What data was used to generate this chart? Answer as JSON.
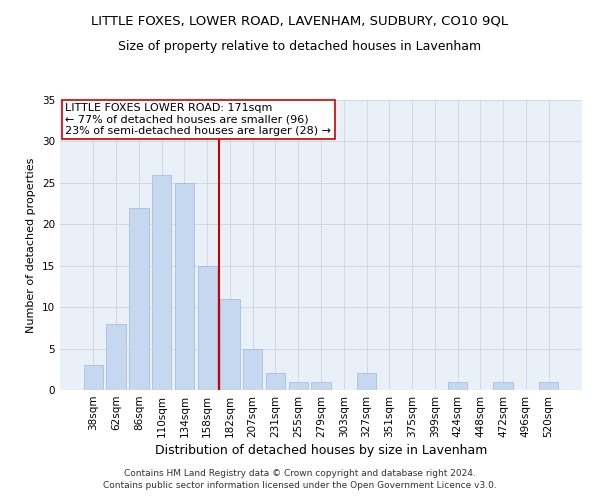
{
  "title": "LITTLE FOXES, LOWER ROAD, LAVENHAM, SUDBURY, CO10 9QL",
  "subtitle": "Size of property relative to detached houses in Lavenham",
  "xlabel": "Distribution of detached houses by size in Lavenham",
  "ylabel": "Number of detached properties",
  "categories": [
    "38sqm",
    "62sqm",
    "86sqm",
    "110sqm",
    "134sqm",
    "158sqm",
    "182sqm",
    "207sqm",
    "231sqm",
    "255sqm",
    "279sqm",
    "303sqm",
    "327sqm",
    "351sqm",
    "375sqm",
    "399sqm",
    "424sqm",
    "448sqm",
    "472sqm",
    "496sqm",
    "520sqm"
  ],
  "values": [
    3,
    8,
    22,
    26,
    25,
    15,
    11,
    5,
    2,
    1,
    1,
    0,
    2,
    0,
    0,
    0,
    1,
    0,
    1,
    0,
    1
  ],
  "bar_color": "#c5d8f0",
  "bar_edge_color": "#a0b8d8",
  "vline_x": 5.5,
  "vline_color": "#cc0000",
  "annotation_line1": "LITTLE FOXES LOWER ROAD: 171sqm",
  "annotation_line2": "← 77% of detached houses are smaller (96)",
  "annotation_line3": "23% of semi-detached houses are larger (28) →",
  "annotation_box_color": "#ffffff",
  "annotation_box_edge": "#cc0000",
  "ylim": [
    0,
    35
  ],
  "yticks": [
    0,
    5,
    10,
    15,
    20,
    25,
    30,
    35
  ],
  "grid_color": "#d0d8e8",
  "background_color": "#eaf0f8",
  "footer": "Contains HM Land Registry data © Crown copyright and database right 2024.\nContains public sector information licensed under the Open Government Licence v3.0.",
  "title_fontsize": 9.5,
  "subtitle_fontsize": 9,
  "xlabel_fontsize": 9,
  "ylabel_fontsize": 8,
  "tick_fontsize": 7.5,
  "annotation_fontsize": 8,
  "footer_fontsize": 6.5
}
